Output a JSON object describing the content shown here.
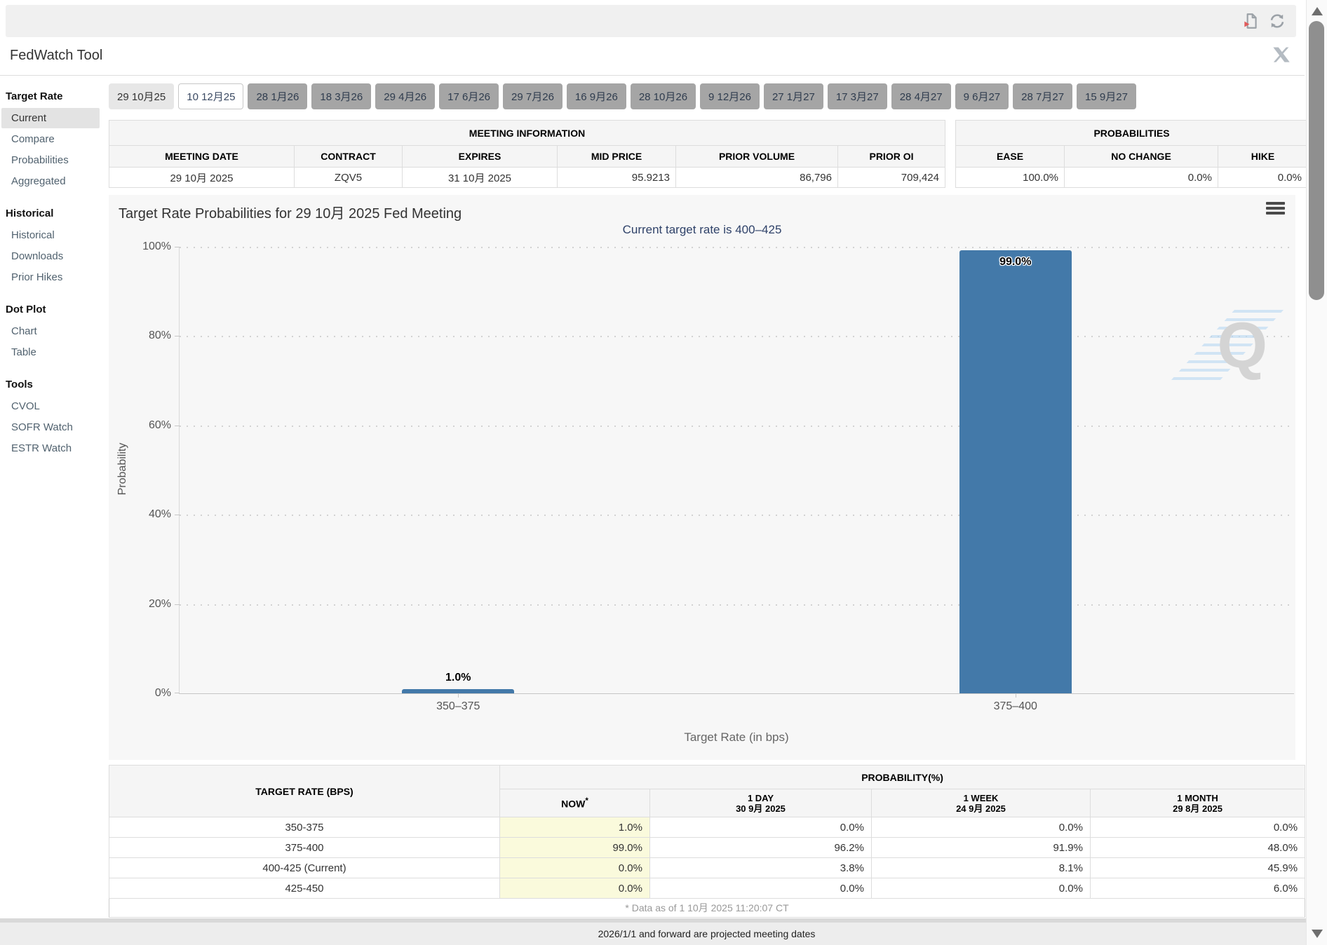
{
  "toolbar": {
    "export_icon": "export-report-icon",
    "refresh_icon": "refresh-icon"
  },
  "header": {
    "title": "FedWatch Tool",
    "share_icon": "x-twitter-icon"
  },
  "sidebar": {
    "sections": [
      {
        "title": "Target Rate",
        "items": [
          {
            "label": "Current",
            "selected": true
          },
          {
            "label": "Compare"
          },
          {
            "label": "Probabilities"
          },
          {
            "label": "Aggregated"
          }
        ]
      },
      {
        "title": "Historical",
        "items": [
          {
            "label": "Historical"
          },
          {
            "label": "Downloads"
          },
          {
            "label": "Prior Hikes"
          }
        ]
      },
      {
        "title": "Dot Plot",
        "items": [
          {
            "label": "Chart"
          },
          {
            "label": "Table"
          }
        ]
      },
      {
        "title": "Tools",
        "items": [
          {
            "label": "CVOL"
          },
          {
            "label": "SOFR Watch"
          },
          {
            "label": "ESTR Watch"
          }
        ]
      }
    ]
  },
  "tabs": [
    {
      "label": "29 10月25",
      "state": "light"
    },
    {
      "label": "10 12月25",
      "state": "active"
    },
    {
      "label": "28 1月26",
      "state": "default"
    },
    {
      "label": "18 3月26",
      "state": "default"
    },
    {
      "label": "29 4月26",
      "state": "default"
    },
    {
      "label": "17 6月26",
      "state": "default"
    },
    {
      "label": "29 7月26",
      "state": "default"
    },
    {
      "label": "16 9月26",
      "state": "default"
    },
    {
      "label": "28 10月26",
      "state": "default"
    },
    {
      "label": "9 12月26",
      "state": "default"
    },
    {
      "label": "27 1月27",
      "state": "default"
    },
    {
      "label": "17 3月27",
      "state": "default"
    },
    {
      "label": "28 4月27",
      "state": "default"
    },
    {
      "label": "9 6月27",
      "state": "default"
    },
    {
      "label": "28 7月27",
      "state": "default"
    },
    {
      "label": "15 9月27",
      "state": "default"
    }
  ],
  "meeting_info": {
    "title": "MEETING INFORMATION",
    "columns": [
      "MEETING DATE",
      "CONTRACT",
      "EXPIRES",
      "MID PRICE",
      "PRIOR VOLUME",
      "PRIOR OI"
    ],
    "row": {
      "meeting_date": "29 10月 2025",
      "contract": "ZQV5",
      "expires": "31 10月 2025",
      "mid_price": "95.9213",
      "prior_volume": "86,796",
      "prior_oi": "709,424"
    }
  },
  "probabilities_summary": {
    "title": "PROBABILITIES",
    "columns": [
      "EASE",
      "NO CHANGE",
      "HIKE"
    ],
    "row": {
      "ease": "100.0%",
      "no_change": "0.0%",
      "hike": "0.0%"
    }
  },
  "chart_data": {
    "type": "bar",
    "title": "Target Rate Probabilities for 29 10月 2025 Fed Meeting",
    "subtitle": "Current target rate is 400–425",
    "categories": [
      "350–375",
      "375–400"
    ],
    "values": [
      1.0,
      99.0
    ],
    "value_labels": [
      "1.0%",
      "99.0%"
    ],
    "xlabel": "Target Rate (in bps)",
    "ylabel": "Probability",
    "ylim": [
      0,
      100
    ],
    "yticks": [
      "100%",
      "80%",
      "60%",
      "40%",
      "20%",
      "0%"
    ],
    "grid": "dotted horizontal",
    "legend": "none",
    "bar_color": "#4379a9",
    "watermark": "Q"
  },
  "prob_table": {
    "rate_header": "TARGET RATE (BPS)",
    "group_header": "PROBABILITY(%)",
    "col_headers": {
      "now": "NOW",
      "now_star": "*",
      "day_line1": "1 DAY",
      "day_line2": "30 9月 2025",
      "week_line1": "1 WEEK",
      "week_line2": "24 9月 2025",
      "month_line1": "1 MONTH",
      "month_line2": "29 8月 2025"
    },
    "rows": [
      {
        "rate": "350-375",
        "now": "1.0%",
        "day": "0.0%",
        "week": "0.0%",
        "month": "0.0%"
      },
      {
        "rate": "375-400",
        "now": "99.0%",
        "day": "96.2%",
        "week": "91.9%",
        "month": "48.0%"
      },
      {
        "rate": "400-425 (Current)",
        "now": "0.0%",
        "day": "3.8%",
        "week": "8.1%",
        "month": "45.9%"
      },
      {
        "rate": "425-450",
        "now": "0.0%",
        "day": "0.0%",
        "week": "0.0%",
        "month": "6.0%"
      }
    ],
    "footnote": "* Data as of 1 10月 2025 11:20:07 CT"
  },
  "footer_note": "2026/1/1 and forward are projected meeting dates"
}
